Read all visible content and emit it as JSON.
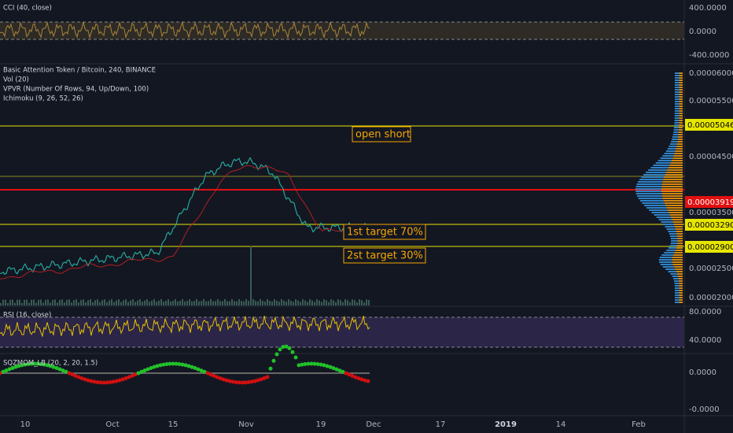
{
  "cci_panel": {
    "legend": "CCI (40, close)",
    "axis_labels": [
      "400.0000",
      "0.0000",
      "-400.0000"
    ]
  },
  "main_panel": {
    "legend": [
      "Basic Attention Token / Bitcoin, 240, BINANCE",
      "Vol (20)",
      "VPVR (Number Of Rows, 94, Up/Down, 100)",
      "Ichimoku (9, 26, 52, 26)"
    ],
    "axis_labels": [
      "0.00006000",
      "0.00005500",
      "0.00004500",
      "0.00003500",
      "0.00002500",
      "0.00002000"
    ],
    "price_badges": [
      "0.00005046",
      "0.00003919",
      "0.00003290",
      "0.00002900"
    ],
    "annotations": [
      "open short",
      "1st target 70%",
      "2st target 30%"
    ]
  },
  "rsi_panel": {
    "legend": "RSI (16, close)",
    "axis_labels": [
      "80.0000",
      "40.0000"
    ]
  },
  "sqzmom_panel": {
    "legend": "SQZMOM_LB (20, 2, 20, 1.5)",
    "axis_labels": [
      "0.0000",
      "-0.0000"
    ]
  },
  "time_axis": [
    "10",
    "Oct",
    "15",
    "Nov",
    "19",
    "Dec",
    "17",
    "2019",
    "14",
    "Feb"
  ]
}
